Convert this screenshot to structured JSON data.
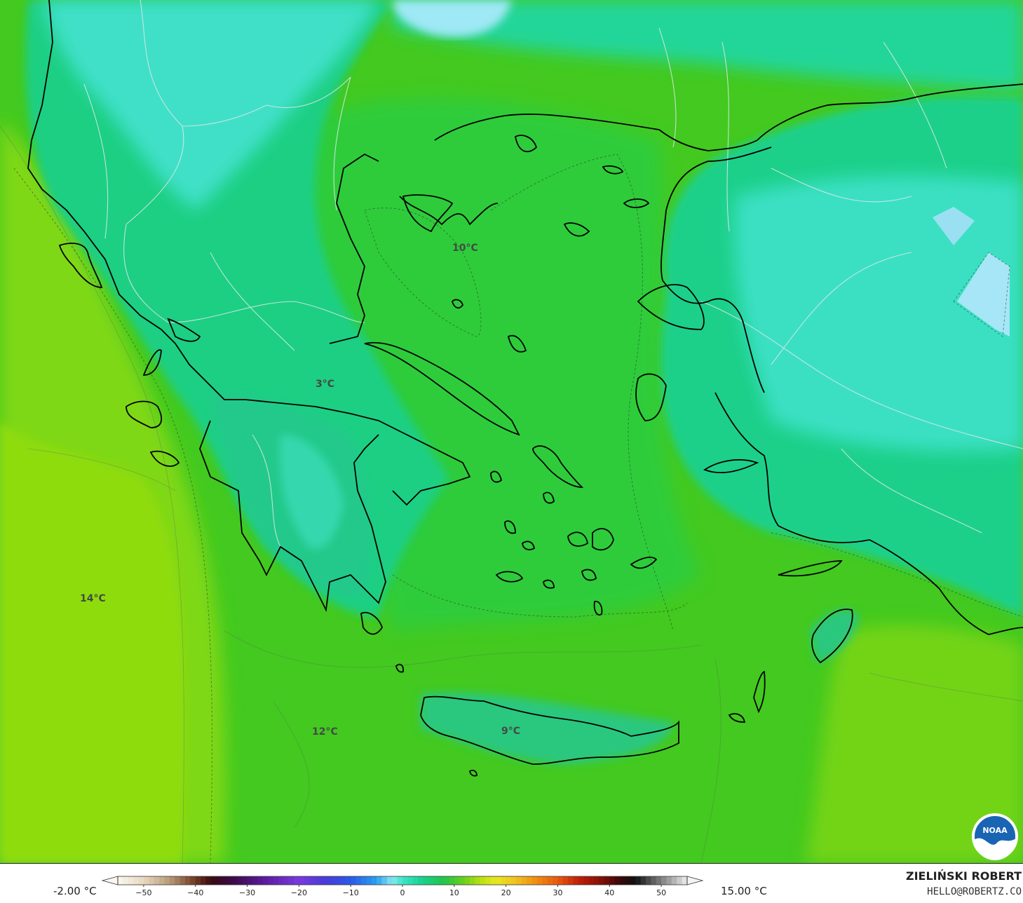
{
  "map": {
    "temperature_labels": [
      {
        "text": "10°C",
        "region": "aegean-north"
      },
      {
        "text": "3°C",
        "region": "central-greece"
      },
      {
        "text": "14°C",
        "region": "ionian-sea"
      },
      {
        "text": "12°C",
        "region": "south-ionian"
      },
      {
        "text": "9°C",
        "region": "crete"
      }
    ],
    "logo": {
      "text": "NOAA"
    }
  },
  "legend": {
    "min_label": "-2.00 °C",
    "max_label": "15.00 °C",
    "ticks": [
      "−50",
      "−40",
      "−30",
      "−20",
      "−10",
      "0",
      "10",
      "20",
      "30",
      "40",
      "50"
    ],
    "scale_min": -55,
    "scale_max": 55
  },
  "credit": {
    "author": "ZIELIŃSKI ROBERT",
    "email": "HELLO@ROBERTZ.CO"
  }
}
